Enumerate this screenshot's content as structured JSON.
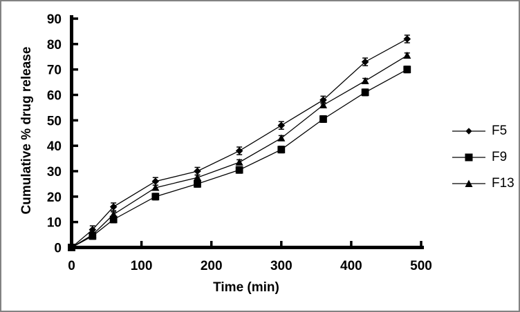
{
  "figure": {
    "background": "#ffffff",
    "border_color": "#828282",
    "axis_color": "#000000"
  },
  "chart_data": {
    "type": "line",
    "title": "",
    "xlabel": "Time (min)",
    "ylabel": "Cumulative % drug release",
    "xlim": [
      0,
      500
    ],
    "ylim": [
      0,
      90
    ],
    "xticks": [
      0,
      100,
      200,
      300,
      400,
      500
    ],
    "yticks": [
      0,
      10,
      20,
      30,
      40,
      50,
      60,
      70,
      80,
      90
    ],
    "grid": false,
    "legend_position": "right-outside",
    "error_bars": true,
    "x": [
      0,
      30,
      60,
      120,
      180,
      240,
      300,
      360,
      420,
      480
    ],
    "series": [
      {
        "name": "F5",
        "marker": "diamond",
        "color": "#000000",
        "error": 1.5,
        "values": [
          0,
          7,
          16,
          26,
          30,
          38,
          48,
          58,
          73,
          82
        ]
      },
      {
        "name": "F9",
        "marker": "square",
        "color": "#000000",
        "error": 1.3,
        "values": [
          0,
          4.5,
          11,
          20,
          25,
          30.5,
          38.5,
          50.5,
          61,
          70
        ]
      },
      {
        "name": "F13",
        "marker": "triangle",
        "color": "#000000",
        "error": 1.0,
        "values": [
          0,
          5,
          13,
          23.5,
          27.5,
          33.5,
          43,
          56,
          65.5,
          75.5
        ]
      }
    ]
  }
}
